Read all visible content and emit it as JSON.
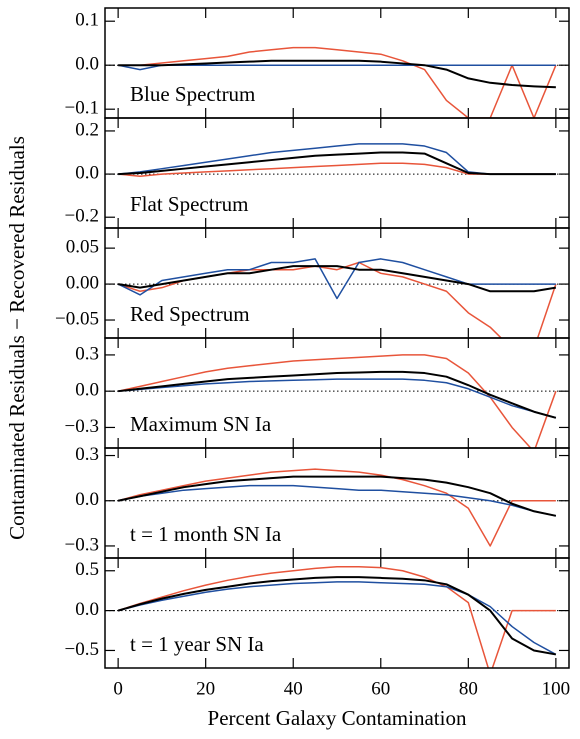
{
  "ylabel": "Contaminated Residuals − Recovered Residuals",
  "xlabel": "Percent Galaxy Contamination",
  "chart_data": [
    {
      "type": "line",
      "annotation": "Blue Spectrum",
      "x": [
        0,
        5,
        10,
        15,
        20,
        25,
        30,
        35,
        40,
        45,
        50,
        55,
        60,
        65,
        70,
        75,
        80,
        85,
        90,
        95,
        100
      ],
      "xlim": [
        -3,
        103
      ],
      "xticks": [
        0,
        20,
        40,
        60,
        80,
        100
      ],
      "ylim": [
        -0.12,
        0.13
      ],
      "yticks": [
        {
          "value": -0.1,
          "label": "−0.1"
        },
        {
          "value": 0,
          "label": "0.0"
        },
        0.1
      ],
      "series": [
        {
          "color": "#000000",
          "values": [
            0,
            0,
            0,
            0.002,
            0.004,
            0.006,
            0.008,
            0.01,
            0.01,
            0.01,
            0.01,
            0.01,
            0.008,
            0.004,
            0,
            -0.01,
            -0.03,
            -0.04,
            -0.045,
            -0.048,
            -0.05
          ]
        },
        {
          "color": "#1f4fa0",
          "values": [
            0,
            -0.01,
            0,
            0,
            0,
            0,
            0,
            0,
            0,
            0,
            0,
            0,
            0,
            0,
            0,
            0,
            0,
            0,
            0,
            0,
            0
          ]
        },
        {
          "color": "#e8553a",
          "values": [
            0,
            0,
            0.005,
            0.01,
            0.015,
            0.02,
            0.03,
            0.035,
            0.04,
            0.04,
            0.035,
            0.03,
            0.025,
            0.01,
            -0.01,
            -0.08,
            -0.12,
            -0.12,
            0,
            -0.12,
            0
          ]
        }
      ]
    },
    {
      "type": "line",
      "annotation": "Flat Spectrum",
      "x": [
        0,
        5,
        10,
        15,
        20,
        25,
        30,
        35,
        40,
        45,
        50,
        55,
        60,
        65,
        70,
        75,
        80,
        85,
        90,
        95,
        100
      ],
      "xlim": [
        -3,
        103
      ],
      "xticks": [
        0,
        20,
        40,
        60,
        80,
        100
      ],
      "ylim": [
        -0.25,
        0.26
      ],
      "yticks": [
        {
          "value": -0.2,
          "label": "−0.2"
        },
        {
          "value": 0,
          "label": "0.0"
        },
        0.2
      ],
      "series": [
        {
          "color": "#000000",
          "values": [
            0,
            0.005,
            0.015,
            0.025,
            0.035,
            0.045,
            0.055,
            0.065,
            0.075,
            0.085,
            0.09,
            0.095,
            0.1,
            0.1,
            0.095,
            0.05,
            0.005,
            0,
            0,
            0,
            0
          ]
        },
        {
          "color": "#1f4fa0",
          "values": [
            0,
            0.01,
            0.025,
            0.04,
            0.055,
            0.07,
            0.085,
            0.1,
            0.11,
            0.12,
            0.13,
            0.14,
            0.14,
            0.14,
            0.13,
            0.1,
            0.01,
            0,
            0,
            0,
            0
          ]
        },
        {
          "color": "#e8553a",
          "values": [
            0,
            -0.01,
            0,
            0.005,
            0.01,
            0.015,
            0.02,
            0.025,
            0.03,
            0.035,
            0.04,
            0.045,
            0.05,
            0.05,
            0.045,
            0.03,
            0,
            0,
            0,
            0,
            0
          ]
        }
      ]
    },
    {
      "type": "line",
      "annotation": "Red Spectrum",
      "x": [
        0,
        5,
        10,
        15,
        20,
        25,
        30,
        35,
        40,
        45,
        50,
        55,
        60,
        65,
        70,
        75,
        80,
        85,
        90,
        95,
        100
      ],
      "xlim": [
        -3,
        103
      ],
      "xticks": [
        0,
        20,
        40,
        60,
        80,
        100
      ],
      "ylim": [
        -0.075,
        0.078
      ],
      "yticks": [
        {
          "value": -0.05,
          "label": "−0.05"
        },
        {
          "value": 0,
          "label": "0.00"
        },
        0.05
      ],
      "series": [
        {
          "color": "#000000",
          "values": [
            0,
            -0.005,
            0,
            0.005,
            0.01,
            0.015,
            0.015,
            0.02,
            0.025,
            0.025,
            0.025,
            0.02,
            0.02,
            0.015,
            0.01,
            0.005,
            0,
            -0.01,
            -0.01,
            -0.01,
            -0.005
          ]
        },
        {
          "color": "#1f4fa0",
          "values": [
            0,
            -0.015,
            0.005,
            0.01,
            0.015,
            0.02,
            0.02,
            0.03,
            0.03,
            0.035,
            -0.02,
            0.03,
            0.035,
            0.03,
            0.02,
            0.01,
            0,
            0,
            0,
            0,
            0
          ]
        },
        {
          "color": "#e8553a",
          "values": [
            0,
            -0.01,
            -0.005,
            0.005,
            0.01,
            0.015,
            0.02,
            0.02,
            0.02,
            0.025,
            0.02,
            0.03,
            0.015,
            0.01,
            0,
            -0.01,
            -0.04,
            -0.06,
            -0.09,
            -0.09,
            0
          ]
        }
      ]
    },
    {
      "type": "line",
      "annotation": "Maximum SN Ia",
      "x": [
        0,
        5,
        10,
        15,
        20,
        25,
        30,
        35,
        40,
        45,
        50,
        55,
        60,
        65,
        70,
        75,
        80,
        85,
        90,
        95,
        100
      ],
      "xlim": [
        -3,
        103
      ],
      "xticks": [
        0,
        20,
        40,
        60,
        80,
        100
      ],
      "ylim": [
        -0.47,
        0.44
      ],
      "yticks": [
        {
          "value": -0.3,
          "label": "−0.3"
        },
        {
          "value": 0,
          "label": "0.0"
        },
        0.3
      ],
      "series": [
        {
          "color": "#000000",
          "values": [
            0,
            0.02,
            0.04,
            0.06,
            0.08,
            0.1,
            0.11,
            0.12,
            0.13,
            0.14,
            0.15,
            0.155,
            0.16,
            0.16,
            0.15,
            0.12,
            0.05,
            -0.03,
            -0.1,
            -0.17,
            -0.22
          ]
        },
        {
          "color": "#1f4fa0",
          "values": [
            0,
            0.015,
            0.03,
            0.045,
            0.06,
            0.07,
            0.08,
            0.085,
            0.09,
            0.095,
            0.1,
            0.1,
            0.1,
            0.1,
            0.09,
            0.07,
            0.02,
            -0.05,
            -0.12,
            -0.17,
            -0.22
          ]
        },
        {
          "color": "#e8553a",
          "values": [
            0,
            0.04,
            0.08,
            0.12,
            0.16,
            0.19,
            0.21,
            0.23,
            0.25,
            0.26,
            0.27,
            0.28,
            0.29,
            0.3,
            0.3,
            0.27,
            0.15,
            -0.05,
            -0.3,
            -0.5,
            0
          ]
        }
      ]
    },
    {
      "type": "line",
      "annotation": "t = 1 month SN Ia",
      "x": [
        0,
        5,
        10,
        15,
        20,
        25,
        30,
        35,
        40,
        45,
        50,
        55,
        60,
        65,
        70,
        75,
        80,
        85,
        90,
        95,
        100
      ],
      "xlim": [
        -3,
        103
      ],
      "xticks": [
        0,
        20,
        40,
        60,
        80,
        100
      ],
      "ylim": [
        -0.38,
        0.35
      ],
      "yticks": [
        {
          "value": -0.3,
          "label": "−0.3"
        },
        {
          "value": 0,
          "label": "0.0"
        },
        0.3
      ],
      "series": [
        {
          "color": "#000000",
          "values": [
            0,
            0.03,
            0.06,
            0.09,
            0.11,
            0.13,
            0.14,
            0.15,
            0.16,
            0.16,
            0.16,
            0.16,
            0.16,
            0.15,
            0.14,
            0.12,
            0.09,
            0.05,
            -0.02,
            -0.07,
            -0.1
          ]
        },
        {
          "color": "#1f4fa0",
          "values": [
            0,
            0.03,
            0.05,
            0.07,
            0.08,
            0.09,
            0.1,
            0.1,
            0.1,
            0.09,
            0.08,
            0.07,
            0.07,
            0.06,
            0.05,
            0.04,
            0.02,
            0,
            -0.03,
            -0.07,
            -0.1
          ]
        },
        {
          "color": "#e8553a",
          "values": [
            0,
            0.04,
            0.07,
            0.1,
            0.13,
            0.15,
            0.17,
            0.19,
            0.2,
            0.21,
            0.2,
            0.19,
            0.17,
            0.14,
            0.1,
            0.05,
            -0.05,
            -0.3,
            0,
            0,
            0
          ]
        }
      ]
    },
    {
      "type": "line",
      "annotation": "t = 1 year SN Ia",
      "x": [
        0,
        5,
        10,
        15,
        20,
        25,
        30,
        35,
        40,
        45,
        50,
        55,
        60,
        65,
        70,
        75,
        80,
        85,
        90,
        95,
        100
      ],
      "xlim": [
        -3,
        103
      ],
      "xticks": [
        0,
        20,
        40,
        60,
        80,
        100
      ],
      "ylim": [
        -0.72,
        0.66
      ],
      "yticks": [
        {
          "value": -0.5,
          "label": "−0.5"
        },
        {
          "value": 0,
          "label": "0.0"
        },
        0.5
      ],
      "series": [
        {
          "color": "#000000",
          "values": [
            0,
            0.08,
            0.15,
            0.21,
            0.26,
            0.3,
            0.34,
            0.37,
            0.39,
            0.41,
            0.42,
            0.42,
            0.41,
            0.4,
            0.38,
            0.33,
            0.2,
            0,
            -0.35,
            -0.5,
            -0.55
          ]
        },
        {
          "color": "#1f4fa0",
          "values": [
            0,
            0.07,
            0.13,
            0.18,
            0.23,
            0.27,
            0.3,
            0.32,
            0.34,
            0.35,
            0.36,
            0.36,
            0.35,
            0.34,
            0.33,
            0.3,
            0.2,
            0.05,
            -0.2,
            -0.4,
            -0.55
          ]
        },
        {
          "color": "#e8553a",
          "values": [
            0,
            0.09,
            0.17,
            0.25,
            0.32,
            0.38,
            0.43,
            0.47,
            0.5,
            0.53,
            0.55,
            0.55,
            0.54,
            0.5,
            0.42,
            0.3,
            0.1,
            -0.8,
            0,
            0,
            0
          ]
        }
      ]
    }
  ]
}
